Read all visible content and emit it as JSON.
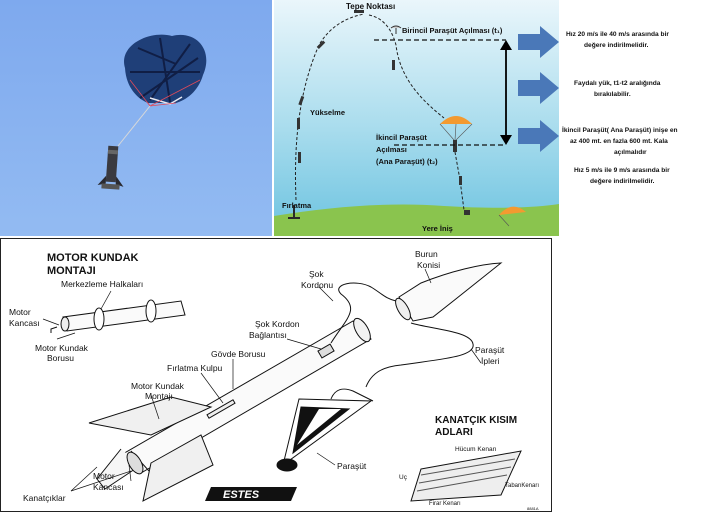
{
  "colors": {
    "sky": "#86b2ef",
    "ground": "#8ac44e",
    "arrow_blue": "#4a78b8",
    "chute_orange": "#f39a30",
    "canopy_navy": "#1f3f78"
  },
  "flight": {
    "apogee": "Tepe Noktası",
    "first_deploy": "Birincil Paraşüt Açılması (t₁)",
    "ascent": "Yükselme",
    "second_deploy_line1": "İkincil Paraşüt",
    "second_deploy_line2": "Açılması",
    "second_deploy_line3": "(Ana Paraşüt) (t₂)",
    "launch": "Fırlatma",
    "landing": "Yere İniş",
    "note1_line1": "Hız 20 m/s ile 40 m/s arasında bir",
    "note1_line2": "değere indirilmelidir.",
    "note2_line1": "Faydalı yük, t1-t2 aralığında",
    "note2_line2": "bırakılabilir.",
    "note3_line1": "İkincil Paraşüt( Ana Paraşüt) inişe en",
    "note3_line2": "az 400 mt. en fazla 600 mt. Kala",
    "note3_line3": "açılmalıdır",
    "note4_line1": "Hız 5 m/s ile 9 m/s arasında bir",
    "note4_line2": "değere indirilmelidir."
  },
  "assembly": {
    "title_line1": "MOTOR KUNDAK",
    "title_line2": "MONTAJI",
    "centering_rings": "Merkezleme Halkaları",
    "motor_hook_1_line1": "Motor",
    "motor_hook_1_line2": "Kancası",
    "motor_tube_line1": "Motor Kundak",
    "motor_tube_line2": "Borusu",
    "shock_cord_mount_line1": "Şok Kordon",
    "shock_cord_mount_line2": "Bağlantısı",
    "body_tube": "Gövde Borusu",
    "launch_lug": "Fırlatma Kulpu",
    "motor_mount_line1": "Motor Kundak",
    "motor_mount_line2": "Montajı",
    "fins": "Kanatçıklar",
    "motor_hook_2_line1": "Motor",
    "motor_hook_2_line2": "Kancası",
    "shock_cord_line1": "Şok",
    "shock_cord_line2": "Kordonu",
    "nose_cone_line1": "Burun",
    "nose_cone_line2": "Konisi",
    "shroud_lines_line1": "Paraşüt",
    "shroud_lines_line2": "İpleri",
    "parachute": "Paraşüt",
    "fin_parts_title_line1": "KANATÇIK KISIM",
    "fin_parts_title_line2": "ADLARI",
    "leading_edge": "Hücum Kenarı",
    "tip": "Uç",
    "root_edge": "TabanKenarı",
    "trailing_edge": "Firar Kenarı",
    "logo": "ESTES",
    "code": "8881A"
  }
}
